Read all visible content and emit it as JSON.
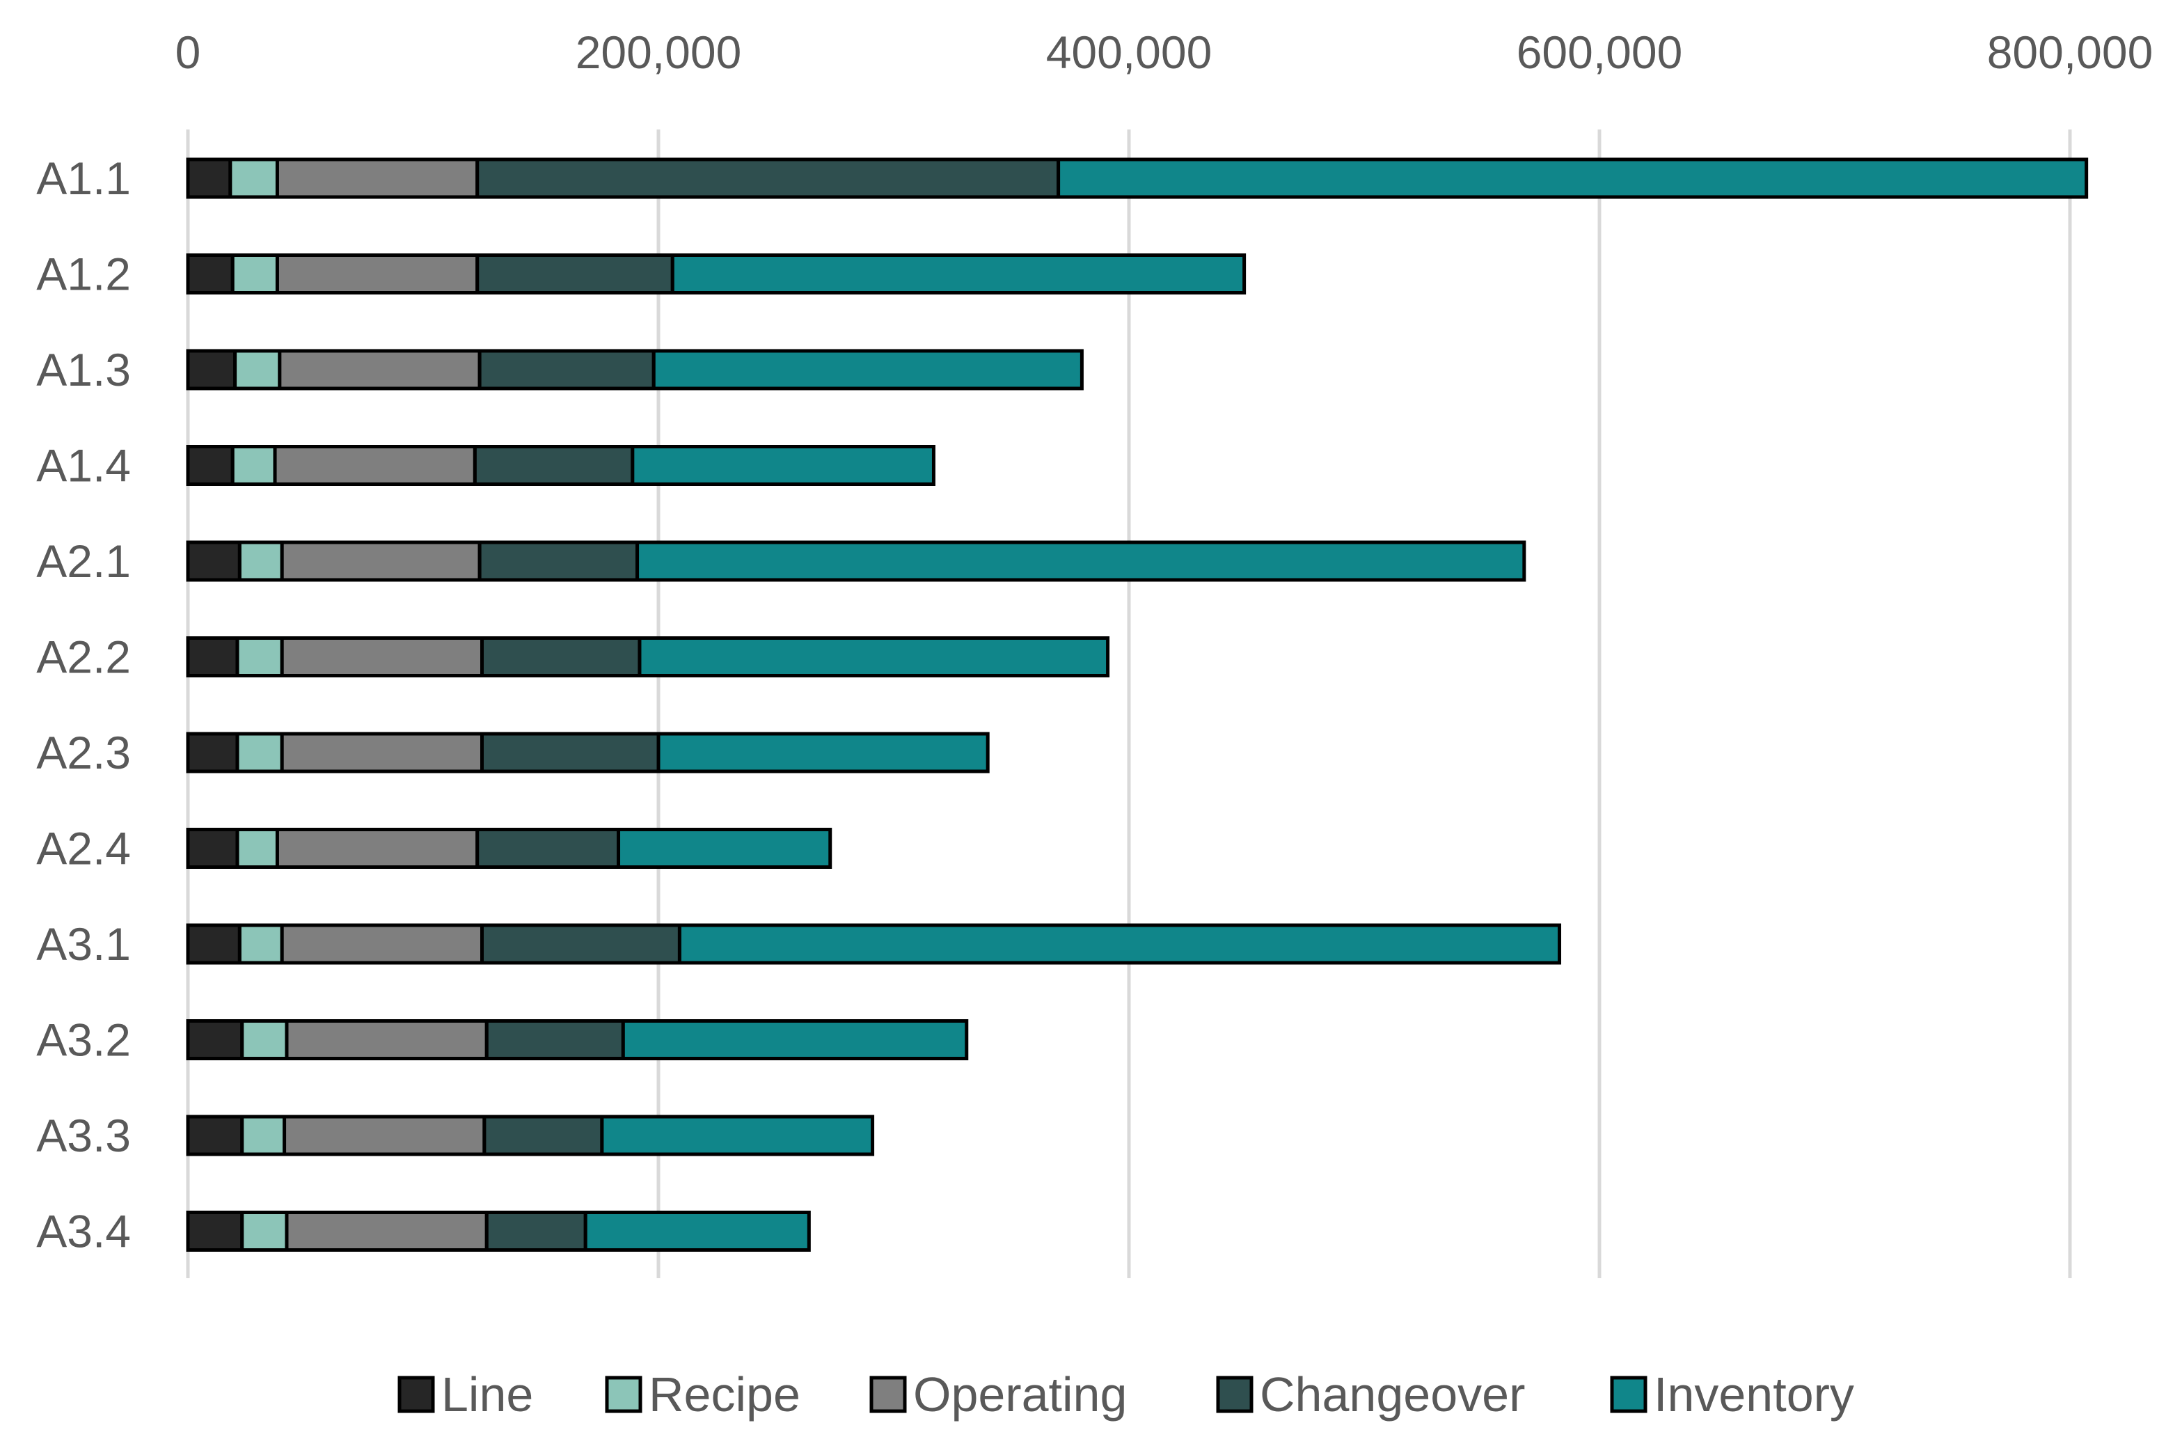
{
  "chart_data": {
    "type": "bar",
    "orientation": "horizontal",
    "stacked": true,
    "title": "",
    "xlabel": "",
    "ylabel": "",
    "xlim": [
      0,
      800000
    ],
    "x_tick_values": [
      0,
      200000,
      400000,
      600000,
      800000
    ],
    "x_tick_labels": [
      "0",
      "200,000",
      "400,000",
      "600,000",
      "800,000"
    ],
    "x_axis_position": "top",
    "grid": true,
    "legend_position": "bottom",
    "categories": [
      "A1.1",
      "A1.2",
      "A1.3",
      "A1.4",
      "A2.1",
      "A2.2",
      "A2.3",
      "A2.4",
      "A3.1",
      "A3.2",
      "A3.3",
      "A3.4"
    ],
    "series": [
      {
        "name": "Line",
        "color": "#262626",
        "values": [
          18000,
          19000,
          20000,
          19000,
          22000,
          21000,
          21000,
          21000,
          22000,
          23000,
          23000,
          23000
        ]
      },
      {
        "name": "Recipe",
        "color": "#8cc5b8",
        "values": [
          20000,
          19000,
          19000,
          18000,
          18000,
          19000,
          19000,
          17000,
          18000,
          19000,
          18000,
          19000
        ]
      },
      {
        "name": "Operating",
        "color": "#7f7f7f",
        "values": [
          85000,
          85000,
          85000,
          85000,
          84000,
          85000,
          85000,
          85000,
          85000,
          85000,
          85000,
          85000
        ]
      },
      {
        "name": "Changeover",
        "color": "#2f4f4f",
        "values": [
          247000,
          83000,
          74000,
          67000,
          67000,
          67000,
          75000,
          60000,
          84000,
          58000,
          50000,
          42000
        ]
      },
      {
        "name": "Inventory",
        "color": "#10868a",
        "values": [
          437000,
          243000,
          182000,
          128000,
          377000,
          199000,
          140000,
          90000,
          374000,
          146000,
          115000,
          95000
        ]
      }
    ]
  }
}
